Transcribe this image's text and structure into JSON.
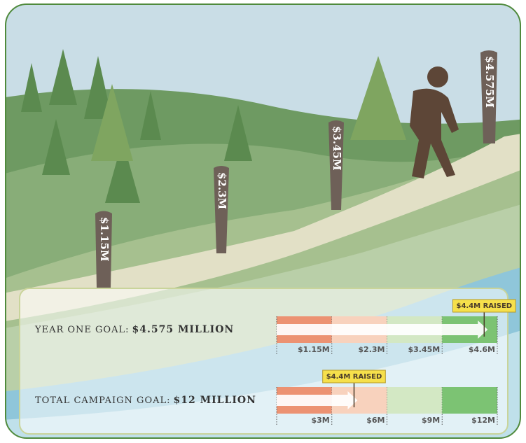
{
  "scene": {
    "posts": [
      "$1.15M",
      "$2.3M",
      "$3.45M",
      "$4.575M"
    ]
  },
  "chart_data": [
    {
      "type": "progress",
      "title": "YEAR ONE GOAL:",
      "goal": "$4.575 MILLION",
      "xlim": [
        0,
        4.6
      ],
      "xticks": [
        {
          "value": 1.15,
          "label": "$1.15M"
        },
        {
          "value": 2.3,
          "label": "$2.3M"
        },
        {
          "value": 3.45,
          "label": "$3.45M"
        },
        {
          "value": 4.6,
          "label": "$4.6M"
        }
      ],
      "colors": [
        "#ec9272",
        "#f8d2bd",
        "#d3e8c4",
        "#7cc373"
      ],
      "values": [
        4.4
      ],
      "value_labels": [
        "$4.4M RAISED"
      ]
    },
    {
      "type": "progress",
      "title": "TOTAL CAMPAIGN GOAL:",
      "goal": "$12 MILLION",
      "xlim": [
        0,
        12
      ],
      "xticks": [
        {
          "value": 3,
          "label": "$3M"
        },
        {
          "value": 6,
          "label": "$6M"
        },
        {
          "value": 9,
          "label": "$9M"
        },
        {
          "value": 12,
          "label": "$12M"
        }
      ],
      "colors": [
        "#ec9272",
        "#f8d2bd",
        "#d3e8c4",
        "#7cc373"
      ],
      "values": [
        4.4
      ],
      "value_labels": [
        "$4.4M RAISED"
      ]
    }
  ]
}
